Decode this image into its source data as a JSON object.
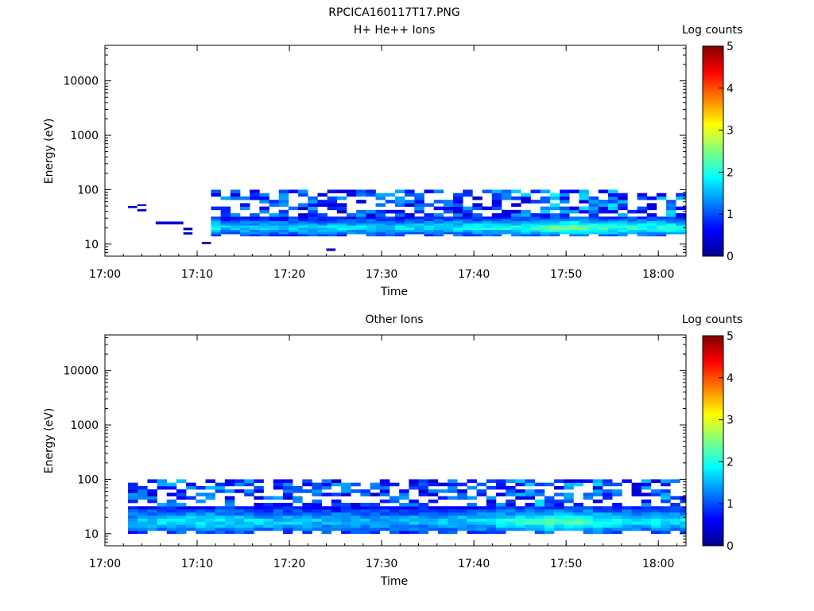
{
  "title": "RPCICA160117T17.PNG",
  "chart_data": [
    {
      "type": "heatmap",
      "title": "H+ He++ Ions",
      "xlabel": "Time",
      "ylabel": "Energy (eV)",
      "x_ticks": [
        "17:00",
        "17:10",
        "17:20",
        "17:30",
        "17:40",
        "17:50",
        "18:00"
      ],
      "y_ticks": [
        "10",
        "100",
        "1000",
        "10000"
      ],
      "y_scale": "log",
      "xlim": [
        "17:00",
        "18:03"
      ],
      "ylim": [
        6,
        45000
      ],
      "colorbar": {
        "label": "Log counts",
        "ticks": [
          "0",
          "1",
          "2",
          "3",
          "4",
          "5"
        ],
        "range": [
          0,
          5
        ]
      },
      "cells": [
        {
          "t0": "17:02.5",
          "t1": "17:03.5",
          "e0": 46,
          "e1": 50,
          "v": 0.4
        },
        {
          "t0": "17:03.5",
          "t1": "17:04.5",
          "e0": 50,
          "e1": 54,
          "v": 0.4
        },
        {
          "t0": "17:03.5",
          "t1": "17:04.5",
          "e0": 40,
          "e1": 44,
          "v": 0.4
        },
        {
          "t0": "17:05.5",
          "t1": "17:08.5",
          "e0": 23,
          "e1": 26,
          "v": 0.4
        },
        {
          "t0": "17:08.5",
          "t1": "17:09.5",
          "e0": 18,
          "e1": 20,
          "v": 0.3
        },
        {
          "t0": "17:08.5",
          "t1": "17:09.5",
          "e0": 15,
          "e1": 16.5,
          "v": 0.3
        },
        {
          "t0": "17:10.5",
          "t1": "17:11.5",
          "e0": 10,
          "e1": 11,
          "v": 0.3
        },
        {
          "t0": "17:24",
          "t1": "17:25",
          "e0": 7.5,
          "e1": 8.3,
          "v": 0.3
        }
      ],
      "regions": [
        {
          "t_start": "17:11.5",
          "t_end": "18:03",
          "e_low": 14,
          "e_high": 32,
          "upper_top": 100
        }
      ],
      "color_trend": [
        {
          "t": "17:12",
          "v": 1.6
        },
        {
          "t": "17:30",
          "v": 1.7
        },
        {
          "t": "17:38",
          "v": 1.8
        },
        {
          "t": "17:45",
          "v": 2.0
        },
        {
          "t": "17:50",
          "v": 2.4
        },
        {
          "t": "17:55",
          "v": 2.0
        },
        {
          "t": "18:00",
          "v": 2.0
        },
        {
          "t": "18:03",
          "v": 1.9
        }
      ]
    },
    {
      "type": "heatmap",
      "title": "Other Ions",
      "xlabel": "Time",
      "ylabel": "Energy (eV)",
      "x_ticks": [
        "17:00",
        "17:10",
        "17:20",
        "17:30",
        "17:40",
        "17:50",
        "18:00"
      ],
      "y_ticks": [
        "10",
        "100",
        "1000",
        "10000"
      ],
      "y_scale": "log",
      "xlim": [
        "17:00",
        "18:03"
      ],
      "ylim": [
        6,
        45000
      ],
      "colorbar": {
        "label": "Log counts",
        "ticks": [
          "0",
          "1",
          "2",
          "3",
          "4",
          "5"
        ],
        "range": [
          0,
          5
        ]
      },
      "cells": [],
      "regions": [
        {
          "t_start": "17:02.5",
          "t_end": "18:03",
          "e_low": 10,
          "e_high": 32,
          "upper_top": 100
        }
      ],
      "color_trend": [
        {
          "t": "17:02",
          "v": 1.6
        },
        {
          "t": "17:10",
          "v": 1.8
        },
        {
          "t": "17:20",
          "v": 1.6
        },
        {
          "t": "17:30",
          "v": 1.5
        },
        {
          "t": "17:40",
          "v": 1.7
        },
        {
          "t": "17:50",
          "v": 2.3
        },
        {
          "t": "17:55",
          "v": 1.8
        },
        {
          "t": "18:03",
          "v": 1.8
        }
      ]
    }
  ]
}
